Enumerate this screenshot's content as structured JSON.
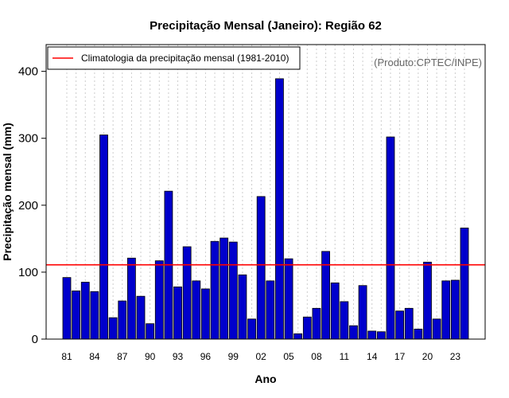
{
  "chart_data": {
    "type": "bar",
    "title": "Precipitação Mensal (Janeiro): Região 62",
    "xlabel": "Ano",
    "ylabel": "Precipitação mensal (mm)",
    "source": "(Produto:CPTEC/INPE)",
    "legend": {
      "label": "Climatologia da precipitação mensal (1981-2010)",
      "position": "top-left"
    },
    "climatology": 111,
    "ylim": [
      0,
      440
    ],
    "yticks": [
      0,
      100,
      200,
      300,
      400
    ],
    "categories": [
      "1981",
      "1982",
      "1983",
      "1984",
      "1985",
      "1986",
      "1987",
      "1988",
      "1989",
      "1990",
      "1991",
      "1992",
      "1993",
      "1994",
      "1995",
      "1996",
      "1997",
      "1998",
      "1999",
      "2000",
      "2001",
      "2002",
      "2003",
      "2004",
      "2005",
      "2006",
      "2007",
      "2008",
      "2009",
      "2010",
      "2011",
      "2012",
      "2013",
      "2014",
      "2015",
      "2016",
      "2017",
      "2018",
      "2019",
      "2020",
      "2021",
      "2022",
      "2023",
      "2024"
    ],
    "xtick_labels": [
      {
        "index": 0,
        "label": "81"
      },
      {
        "index": 3,
        "label": "84"
      },
      {
        "index": 6,
        "label": "87"
      },
      {
        "index": 9,
        "label": "90"
      },
      {
        "index": 12,
        "label": "93"
      },
      {
        "index": 15,
        "label": "96"
      },
      {
        "index": 18,
        "label": "99"
      },
      {
        "index": 21,
        "label": "02"
      },
      {
        "index": 24,
        "label": "05"
      },
      {
        "index": 27,
        "label": "08"
      },
      {
        "index": 30,
        "label": "11"
      },
      {
        "index": 33,
        "label": "14"
      },
      {
        "index": 36,
        "label": "17"
      },
      {
        "index": 39,
        "label": "20"
      },
      {
        "index": 42,
        "label": "23"
      }
    ],
    "values": [
      92,
      72,
      85,
      71,
      305,
      32,
      57,
      121,
      64,
      23,
      117,
      221,
      78,
      138,
      87,
      75,
      146,
      151,
      145,
      96,
      30,
      213,
      87,
      389,
      120,
      8,
      33,
      46,
      131,
      84,
      56,
      20,
      80,
      12,
      11,
      302,
      42,
      46,
      15,
      115,
      30,
      87,
      88,
      166
    ],
    "colors": {
      "bar_fill": "#0000cc",
      "bar_stroke": "#000000",
      "climatology_line": "#ff0000",
      "grid": "#cccccc"
    }
  }
}
